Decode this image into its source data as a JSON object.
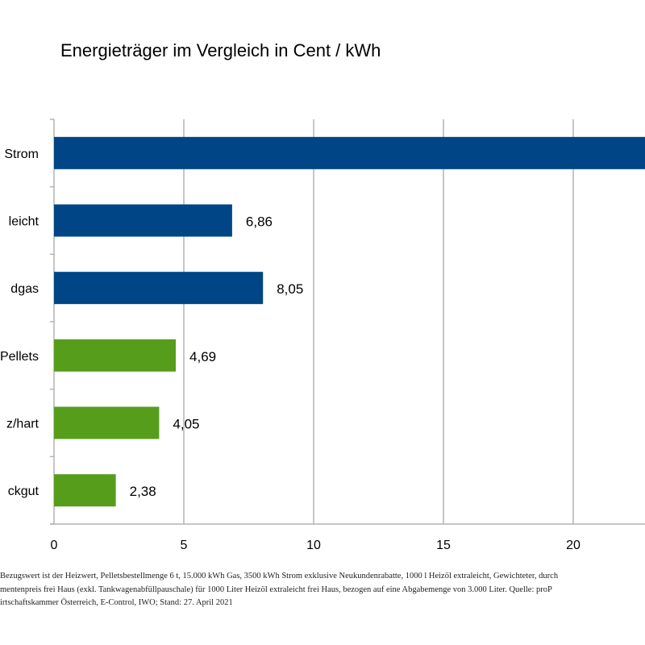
{
  "chart_data": {
    "type": "bar",
    "orientation": "horizontal",
    "title": "Energieträger im Vergleich in Cent / kWh",
    "categories": [
      "Strom",
      "leicht",
      "dgas",
      "Pellets",
      "z/hart",
      "ckgut"
    ],
    "values": [
      null,
      6.86,
      8.05,
      4.69,
      4.05,
      2.38
    ],
    "data_labels": [
      "",
      "6,86",
      "8,05",
      "4,69",
      "4,05",
      "2,38"
    ],
    "bar_colors": [
      "#004586",
      "#004586",
      "#004586",
      "#579d1c",
      "#579d1c",
      "#579d1c"
    ],
    "x_ticks": [
      "0",
      "5",
      "10",
      "15",
      "20"
    ],
    "xlim": [
      0,
      22.8
    ],
    "grid": true,
    "xlabel": "",
    "ylabel": ""
  },
  "footnote": {
    "lines": [
      "Bezugswert ist der Heizwert, Pelletsbestellmenge 6 t, 15.000 kWh Gas, 3500 kWh Strom exklusive Neukundenrabatte, 1000 l Heizöl extraleicht, Gewichteter, durch",
      "mentenpreis frei Haus (exkl. Tankwagenabfüllpauschale) für 1000 Liter Heizöl extraleicht frei Haus, bezogen auf eine Abgabemenge von 3.000 Liter. Quelle: proP",
      "irtschaftskammer Österreich, E-Control, IWO; Stand: 27. April 2021"
    ]
  }
}
